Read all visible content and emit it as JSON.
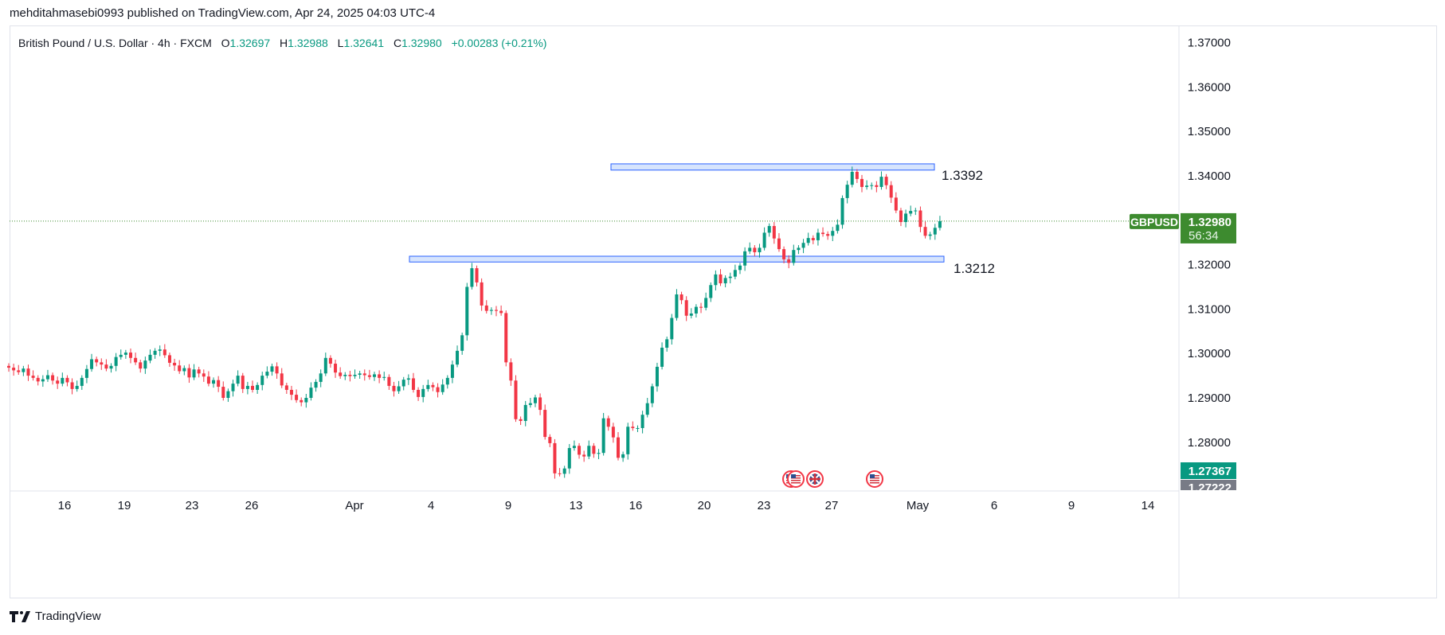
{
  "header": {
    "published_by": "mehditahmasebi0993 published on TradingView.com, Apr 24, 2025 04:03 UTC-4"
  },
  "legend": {
    "symbol_desc": "British Pound / U.S. Dollar · 4h · FXCM",
    "open": "1.32697",
    "high": "1.32988",
    "low": "1.32641",
    "close": "1.32980",
    "change": "+0.00283 (+0.21%)"
  },
  "colors": {
    "up": "#089981",
    "down": "#f23645",
    "zone_fill": "#d6e4fd",
    "zone_border": "#2962ff",
    "last_price_bg": "#3d8b2f",
    "high_marker_bg": "#089981",
    "low_marker_bg": "#787b86"
  },
  "price_tags": {
    "symbol": "GBPUSD",
    "last_price": "1.32980",
    "countdown": "56:34",
    "marker_1": "1.27367",
    "marker_2": "1.27222"
  },
  "footer": {
    "brand": "TradingView"
  },
  "chart_data": {
    "type": "candlestick",
    "title": "British Pound / U.S. Dollar · 4h · FXCM",
    "x_axis_labels": [
      "16",
      "19",
      "23",
      "26",
      "Apr",
      "4",
      "9",
      "13",
      "16",
      "20",
      "23",
      "27",
      "May",
      "6",
      "9",
      "14"
    ],
    "y_ticks": [
      "1.37000",
      "1.36000",
      "1.35000",
      "1.34000",
      "1.33000",
      "1.32000",
      "1.31000",
      "1.30000",
      "1.29000",
      "1.28000"
    ],
    "ylim": [
      1.2695,
      1.3745
    ],
    "last_price": 1.3298,
    "levels": [
      {
        "label": "1.3392",
        "value": 1.3392
      },
      {
        "label": "1.3212",
        "value": 1.3212
      }
    ],
    "zones": [
      {
        "from_date": "Apr 14",
        "to_date": "Apr 30",
        "low": 1.3413,
        "high": 1.3427,
        "level_label": "1.3392"
      },
      {
        "from_date": "Apr 3",
        "to_date": "May 1",
        "low": 1.3206,
        "high": 1.3219,
        "level_label": "1.3212"
      }
    ],
    "event_markers": [
      {
        "date": "Apr 24",
        "flag": "US"
      },
      {
        "date": "Apr 24",
        "flag": "US"
      },
      {
        "date": "Apr 25",
        "flag": "GB"
      },
      {
        "date": "Apr 29",
        "flag": "US"
      }
    ],
    "closes": [
      1.2968,
      1.2962,
      1.2958,
      1.2966,
      1.295,
      1.2945,
      1.2937,
      1.2942,
      1.2951,
      1.2939,
      1.2932,
      1.2945,
      1.2935,
      1.292,
      1.2927,
      1.2945,
      1.2965,
      1.2987,
      1.298,
      1.2975,
      1.2966,
      1.2972,
      1.2992,
      1.2997,
      1.3002,
      1.299,
      1.298,
      1.2966,
      1.2984,
      1.2997,
      1.3006,
      1.3009,
      1.2996,
      1.2979,
      1.2973,
      1.296,
      1.2967,
      1.2946,
      1.2964,
      1.2955,
      1.2948,
      1.2932,
      1.294,
      1.2925,
      1.29,
      1.2915,
      1.2932,
      1.295,
      1.292,
      1.2927,
      1.2918,
      1.2929,
      1.295,
      1.2959,
      1.2971,
      1.2955,
      1.2928,
      1.2918,
      1.2907,
      1.2895,
      1.289,
      1.29,
      1.2923,
      1.2936,
      1.2955,
      1.299,
      1.2977,
      1.2957,
      1.2949,
      1.2952,
      1.2949,
      1.2952,
      1.2955,
      1.2951,
      1.2947,
      1.2953,
      1.2945,
      1.2947,
      1.2927,
      1.2915,
      1.2926,
      1.2941,
      1.2944,
      1.2918,
      1.2902,
      1.292,
      1.2929,
      1.2924,
      1.2913,
      1.293,
      1.2945,
      1.2975,
      1.3006,
      1.3041,
      1.315,
      1.3192,
      1.316,
      1.3108,
      1.3096,
      1.3098,
      1.3096,
      1.3091,
      1.298,
      1.2939,
      1.2852,
      1.2848,
      1.2884,
      1.2888,
      1.2901,
      1.2873,
      1.2812,
      1.2798,
      1.273,
      1.2729,
      1.2741,
      1.2787,
      1.2792,
      1.2772,
      1.2768,
      1.2792,
      1.2774,
      1.2776,
      1.2854,
      1.2835,
      1.2811,
      1.2765,
      1.2773,
      1.2835,
      1.2832,
      1.2832,
      1.2862,
      1.2888,
      1.2926,
      1.297,
      1.3013,
      1.3032,
      1.308,
      1.3133,
      1.312,
      1.3085,
      1.309,
      1.3105,
      1.3103,
      1.3125,
      1.3154,
      1.3178,
      1.3158,
      1.317,
      1.3173,
      1.3188,
      1.3198,
      1.323,
      1.3238,
      1.3228,
      1.3238,
      1.3272,
      1.3287,
      1.3259,
      1.3235,
      1.3212,
      1.3204,
      1.3233,
      1.3238,
      1.3249,
      1.326,
      1.3255,
      1.3272,
      1.3269,
      1.3265,
      1.3276,
      1.329,
      1.335,
      1.338,
      1.3409,
      1.3393,
      1.3375,
      1.3378,
      1.3379,
      1.3375,
      1.3398,
      1.3379,
      1.3351,
      1.3322,
      1.3296,
      1.3315,
      1.3321,
      1.3322,
      1.3285,
      1.3265,
      1.3268,
      1.3283,
      1.3298
    ]
  }
}
